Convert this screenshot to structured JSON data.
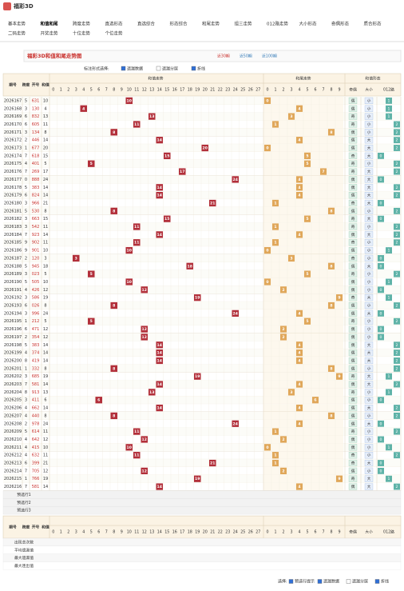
{
  "header": {
    "logo": "福彩3D",
    "nav": [
      "基本走势",
      "和值和尾",
      "跨度走势",
      "直选形态",
      "直选综合",
      "形态综合",
      "和尾走势",
      "组三走势",
      "012路走势",
      "大小形态",
      "奇偶形态",
      "质合形态",
      "二码走势",
      "开奖走势",
      "十位走势",
      "个位走势"
    ]
  },
  "title": "福彩3D和值和尾走势图",
  "controls": {
    "periods": [
      "近30期",
      "近50期",
      "近100期"
    ],
    "mark_label": "标注形式选择:",
    "options": [
      "遗漏数据",
      "遗漏分层",
      "折线"
    ]
  },
  "table": {
    "columns": [
      "期号",
      "跨度",
      "开号",
      "和值"
    ],
    "groups": [
      "和值走势",
      "和尾走势",
      "和值形态"
    ],
    "sum_cols": [
      0,
      1,
      2,
      3,
      4,
      5,
      6,
      7,
      8,
      9,
      10,
      11,
      12,
      13,
      14,
      15,
      16,
      17,
      18,
      19,
      20,
      21,
      22,
      23,
      24,
      25,
      26,
      27
    ],
    "tail_cols": [
      0,
      1,
      2,
      3,
      4,
      5,
      6,
      7,
      8,
      9
    ],
    "shape_cols": [
      "奇偶",
      "大小",
      "012路"
    ],
    "rows": [
      [
        "2026167",
        5,
        "631",
        10,
        0,
        "偶",
        "小",
        1
      ],
      [
        "2026168",
        3,
        "130",
        4,
        4,
        "偶",
        "小",
        1
      ],
      [
        "2026169",
        6,
        "832",
        13,
        3,
        "奇",
        "小",
        1
      ],
      [
        "2026170",
        6,
        "605",
        11,
        1,
        "奇",
        "小",
        2
      ],
      [
        "2026171",
        3,
        "134",
        8,
        8,
        "偶",
        "小",
        2
      ],
      [
        "2026172",
        2,
        "446",
        14,
        4,
        "偶",
        "大",
        2
      ],
      [
        "2026173",
        1,
        "677",
        20,
        0,
        "偶",
        "大",
        2
      ],
      [
        "2026174",
        7,
        "618",
        15,
        5,
        "奇",
        "大",
        0
      ],
      [
        "2026175",
        4,
        "401",
        5,
        5,
        "奇",
        "小",
        2
      ],
      [
        "2026176",
        7,
        "269",
        17,
        7,
        "奇",
        "大",
        2
      ],
      [
        "2026177",
        0,
        "888",
        24,
        4,
        "偶",
        "大",
        0
      ],
      [
        "2026178",
        5,
        "383",
        14,
        4,
        "偶",
        "大",
        2
      ],
      [
        "2026179",
        6,
        "824",
        14,
        4,
        "偶",
        "大",
        2
      ],
      [
        "2026180",
        3,
        "966",
        21,
        1,
        "奇",
        "大",
        0
      ],
      [
        "2026181",
        5,
        "530",
        8,
        8,
        "偶",
        "小",
        2
      ],
      [
        "2026182",
        3,
        "663",
        15,
        5,
        "奇",
        "大",
        0
      ],
      [
        "2026183",
        3,
        "542",
        11,
        1,
        "奇",
        "小",
        2
      ],
      [
        "2026184",
        7,
        "923",
        14,
        4,
        "偶",
        "大",
        2
      ],
      [
        "2026185",
        9,
        "902",
        11,
        1,
        "奇",
        "小",
        2
      ],
      [
        "2026186",
        9,
        "901",
        10,
        0,
        "偶",
        "小",
        1
      ],
      [
        "2026187",
        2,
        "120",
        3,
        3,
        "奇",
        "小",
        0
      ],
      [
        "2026188",
        5,
        "945",
        18,
        8,
        "偶",
        "大",
        0
      ],
      [
        "2026189",
        3,
        "023",
        5,
        5,
        "奇",
        "小",
        2
      ],
      [
        "2026190",
        5,
        "505",
        10,
        0,
        "偶",
        "小",
        1
      ],
      [
        "2026191",
        4,
        "426",
        12,
        2,
        "偶",
        "小",
        0
      ],
      [
        "2026192",
        3,
        "586",
        19,
        9,
        "奇",
        "大",
        1
      ],
      [
        "2026193",
        6,
        "026",
        8,
        8,
        "偶",
        "小",
        2
      ],
      [
        "2026194",
        3,
        "996",
        24,
        4,
        "偶",
        "大",
        0
      ],
      [
        "2026195",
        1,
        "212",
        5,
        5,
        "奇",
        "小",
        2
      ],
      [
        "2026196",
        6,
        "471",
        12,
        2,
        "偶",
        "小",
        0
      ],
      [
        "2026197",
        2,
        "354",
        12,
        2,
        "偶",
        "小",
        0
      ],
      [
        "2026198",
        5,
        "383",
        14,
        4,
        "偶",
        "大",
        2
      ],
      [
        "2026199",
        4,
        "374",
        14,
        4,
        "偶",
        "大",
        2
      ],
      [
        "2026200",
        8,
        "419",
        14,
        4,
        "偶",
        "大",
        2
      ],
      [
        "2026201",
        1,
        "332",
        8,
        8,
        "偶",
        "小",
        2
      ],
      [
        "2026202",
        3,
        "685",
        19,
        9,
        "奇",
        "大",
        1
      ],
      [
        "2026203",
        7,
        "581",
        14,
        4,
        "偶",
        "大",
        2
      ],
      [
        "2026204",
        8,
        "913",
        13,
        3,
        "奇",
        "小",
        1
      ],
      [
        "2026205",
        3,
        "411",
        6,
        6,
        "偶",
        "小",
        0
      ],
      [
        "2026206",
        4,
        "662",
        14,
        4,
        "偶",
        "大",
        2
      ],
      [
        "2026207",
        4,
        "440",
        8,
        8,
        "偶",
        "小",
        2
      ],
      [
        "2026208",
        2,
        "978",
        24,
        4,
        "偶",
        "大",
        0
      ],
      [
        "2026209",
        5,
        "614",
        11,
        1,
        "奇",
        "小",
        2
      ],
      [
        "2026210",
        4,
        "642",
        12,
        2,
        "偶",
        "小",
        0
      ],
      [
        "2026211",
        4,
        "415",
        10,
        0,
        "偶",
        "小",
        1
      ],
      [
        "2026212",
        4,
        "632",
        11,
        1,
        "奇",
        "小",
        2
      ],
      [
        "2026213",
        6,
        "399",
        21,
        1,
        "奇",
        "大",
        0
      ],
      [
        "2026214",
        7,
        "705",
        12,
        2,
        "偶",
        "小",
        0
      ],
      [
        "2026215",
        1,
        "766",
        19,
        9,
        "奇",
        "大",
        1
      ],
      [
        "2026216",
        7,
        "581",
        14,
        4,
        "偶",
        "大",
        2
      ]
    ],
    "pre_rows": [
      "预选行1",
      "预选行2",
      "预选行3"
    ],
    "stats_rows": [
      "出现总次数",
      "平均遗漏值",
      "最大遗漏值",
      "最大连出值"
    ]
  },
  "footer": {
    "label": "选择:",
    "options": [
      "预选行提示",
      "遗漏数据",
      "遗漏分层",
      "折线"
    ]
  }
}
